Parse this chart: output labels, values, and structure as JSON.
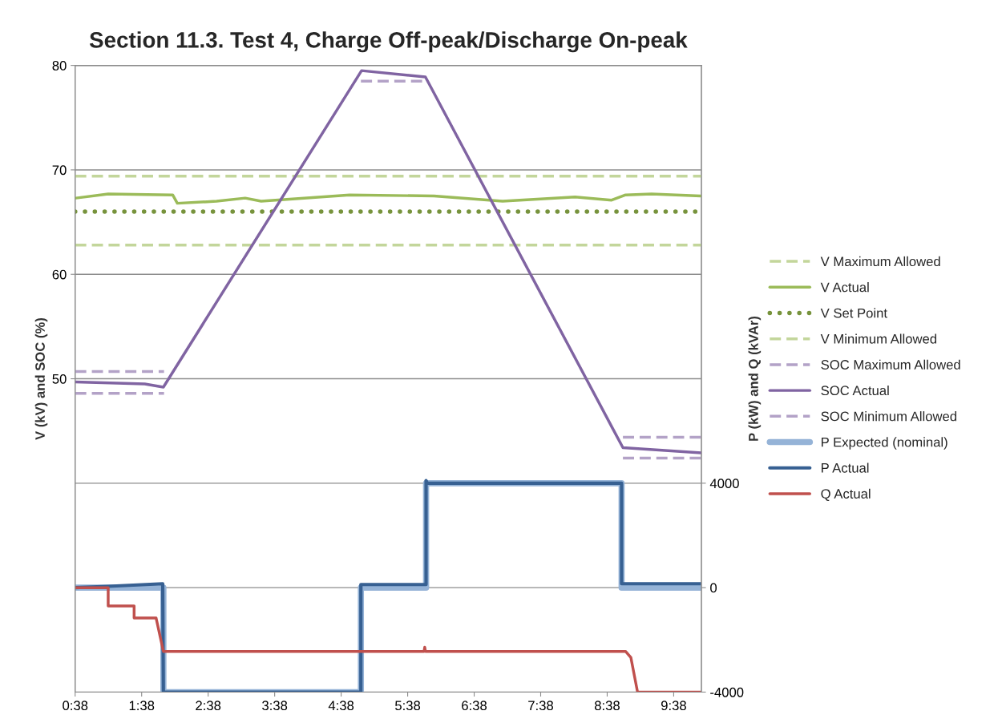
{
  "chart_data": {
    "type": "line",
    "title": "Section 11.3. Test 4, Charge Off-peak/Discharge On-peak",
    "ylabel": "V (kV) and SOC (%)",
    "y2label": "P (kW) and Q (kVAr)",
    "xlim": [
      0.6333,
      10.05
    ],
    "xticks": [
      {
        "value": 0.6333,
        "label": "0:38"
      },
      {
        "value": 1.6333,
        "label": "1:38"
      },
      {
        "value": 2.6333,
        "label": "2:38"
      },
      {
        "value": 3.6333,
        "label": "3:38"
      },
      {
        "value": 4.6333,
        "label": "4:38"
      },
      {
        "value": 5.6333,
        "label": "5:38"
      },
      {
        "value": 6.6333,
        "label": "6:38"
      },
      {
        "value": 7.6333,
        "label": "7:38"
      },
      {
        "value": 8.6333,
        "label": "8:38"
      },
      {
        "value": 9.6333,
        "label": "9:38"
      }
    ],
    "ylim": [
      20,
      80
    ],
    "yticks": [
      50,
      60,
      70,
      80
    ],
    "y2lim": [
      -4000,
      20000
    ],
    "y2ticks": [
      -4000,
      0,
      4000
    ],
    "grid": "y",
    "legend": "right",
    "series": [
      {
        "name": "V Maximum Allowed",
        "color": "#c3d69b",
        "line_style": "dashed",
        "x": [
          0.6333,
          10.05
        ],
        "values": [
          69.4,
          69.4
        ]
      },
      {
        "name": "V Actual",
        "color": "#9bbb59",
        "line_style": "solid",
        "x": [
          0.645,
          1.13,
          2.1,
          2.17,
          2.76,
          3.19,
          3.43,
          4.76,
          6.03,
          7.06,
          8.15,
          8.7,
          8.91,
          9.3,
          10.04
        ],
        "values": [
          67.3,
          67.7,
          67.6,
          66.8,
          67.0,
          67.3,
          67.0,
          67.6,
          67.5,
          67.0,
          67.4,
          67.1,
          67.6,
          67.7,
          67.5
        ]
      },
      {
        "name": "V Set Point",
        "color": "#77933c",
        "line_style": "dotted",
        "x": [
          0.6333,
          10.05
        ],
        "values": [
          66.0,
          66.0
        ]
      },
      {
        "name": "V Minimum Allowed",
        "color": "#c3d69b",
        "line_style": "dashed",
        "x": [
          0.6333,
          10.05
        ],
        "values": [
          62.8,
          62.8
        ]
      },
      {
        "name": "SOC Maximum Allowed",
        "color": "#b3a2c7",
        "line_style": "dashed",
        "x": [
          0.6333,
          1.97,
          1.98,
          4.93,
          5.9,
          5.91,
          8.87,
          10.05
        ],
        "values": [
          50.7,
          50.7,
          null,
          78.5,
          78.5,
          null,
          44.4,
          44.4
        ]
      },
      {
        "name": "SOC Actual",
        "color": "#8064a2",
        "line_style": "solid",
        "x": [
          0.6333,
          1.68,
          1.96,
          4.94,
          5.9,
          8.87,
          10.05
        ],
        "values": [
          49.7,
          49.5,
          49.2,
          79.5,
          78.9,
          43.4,
          42.9
        ]
      },
      {
        "name": "SOC Minimum Allowed",
        "color": "#b3a2c7",
        "line_style": "dashed",
        "x": [
          0.6333,
          1.97,
          1.98,
          8.87,
          10.05
        ],
        "values": [
          48.6,
          48.6,
          null,
          42.4,
          42.4
        ]
      },
      {
        "name": "P Expected (nominal)",
        "color": "#95b3d7",
        "line_style": "solid",
        "axis": "y2",
        "x": [
          0.6333,
          1.96,
          1.96,
          4.93,
          4.93,
          5.91,
          5.91,
          8.85,
          8.85,
          10.05
        ],
        "values": [
          0,
          0,
          -4000,
          -4000,
          0,
          0,
          4000,
          4000,
          0,
          0
        ]
      },
      {
        "name": "P Actual",
        "color": "#376092",
        "line_style": "solid",
        "axis": "y2",
        "x": [
          0.6333,
          1.13,
          1.95,
          1.96,
          4.93,
          4.93,
          5.91,
          5.91,
          5.93,
          8.85,
          8.85,
          10.05
        ],
        "values": [
          0,
          50,
          150,
          -4000,
          -4000,
          120,
          120,
          4100,
          4000,
          4000,
          150,
          150
        ]
      },
      {
        "name": "Q Actual",
        "color": "#c0504d",
        "line_style": "solid",
        "axis": "y2",
        "x": [
          0.6333,
          1.13,
          1.13,
          1.52,
          1.52,
          1.85,
          1.96,
          5.88,
          5.89,
          5.9,
          8.91,
          8.99,
          9.09,
          10.05
        ],
        "values": [
          0,
          0,
          -700,
          -700,
          -1160,
          -1160,
          -2440,
          -2440,
          -2280,
          -2440,
          -2440,
          -2680,
          -4000,
          -4000
        ]
      }
    ]
  }
}
